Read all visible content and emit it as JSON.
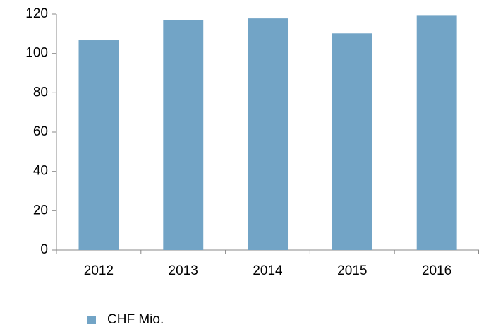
{
  "chart_data": {
    "type": "bar",
    "categories": [
      "2012",
      "2013",
      "2014",
      "2015",
      "2016"
    ],
    "series": [
      {
        "name": "CHF Mio.",
        "color": "#72a4c6",
        "values": [
          106.7,
          116.8,
          117.8,
          110.2,
          119.5
        ]
      }
    ],
    "ylim": [
      0,
      120
    ],
    "yticks": [
      0,
      20,
      40,
      60,
      80,
      100,
      120
    ],
    "grid": false,
    "legend": "bottom"
  }
}
